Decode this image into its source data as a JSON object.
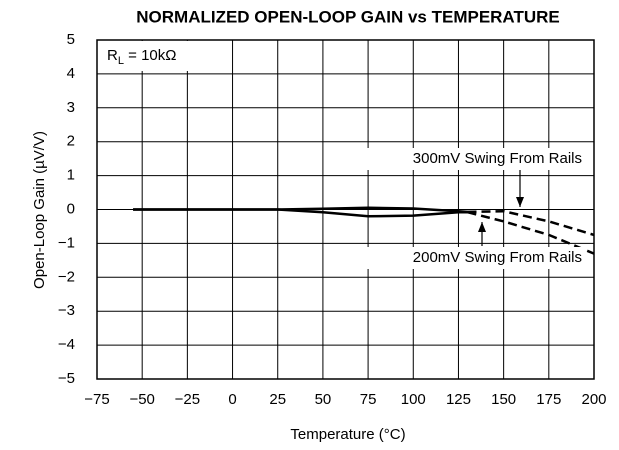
{
  "chart_data": {
    "type": "line",
    "title": "NORMALIZED OPEN-LOOP GAIN vs TEMPERATURE",
    "xlabel": "Temperature (°C)",
    "ylabel": "Open-Loop Gain (µV/V)",
    "xlim": [
      -75,
      200
    ],
    "xticks": [
      {
        "value": -75,
        "label": "−75"
      },
      {
        "value": -50,
        "label": "−50"
      },
      {
        "value": -25,
        "label": "−25"
      },
      0,
      25,
      50,
      75,
      100,
      125,
      150,
      175,
      200
    ],
    "ylim": [
      -5,
      5
    ],
    "yticks": [
      {
        "value": -5,
        "label": "−5"
      },
      {
        "value": -4,
        "label": "−4"
      },
      {
        "value": -3,
        "label": "−3"
      },
      {
        "value": -2,
        "label": "−2"
      },
      {
        "value": -1,
        "label": "−1"
      },
      0,
      1,
      2,
      3,
      4,
      5
    ],
    "grid": true,
    "x": [
      -55,
      -25,
      0,
      25,
      50,
      75,
      100,
      125,
      130,
      150,
      175,
      200
    ],
    "series": [
      {
        "name": "300mV Swing From Rails",
        "color": "#000000",
        "dashed_from_x": 130,
        "values": [
          0,
          0,
          0,
          0,
          0.02,
          0.05,
          0.03,
          -0.05,
          -0.07,
          -0.05,
          -0.35,
          -0.75
        ]
      },
      {
        "name": "200mV Swing From Rails",
        "color": "#000000",
        "dashed_from_x": 130,
        "values": [
          0,
          0,
          0,
          0,
          -0.08,
          -0.2,
          -0.18,
          -0.08,
          -0.08,
          -0.35,
          -0.75,
          -1.3
        ]
      }
    ],
    "annotation": {
      "main": "R",
      "sub": "L",
      "rest": " = 10kΩ"
    }
  }
}
